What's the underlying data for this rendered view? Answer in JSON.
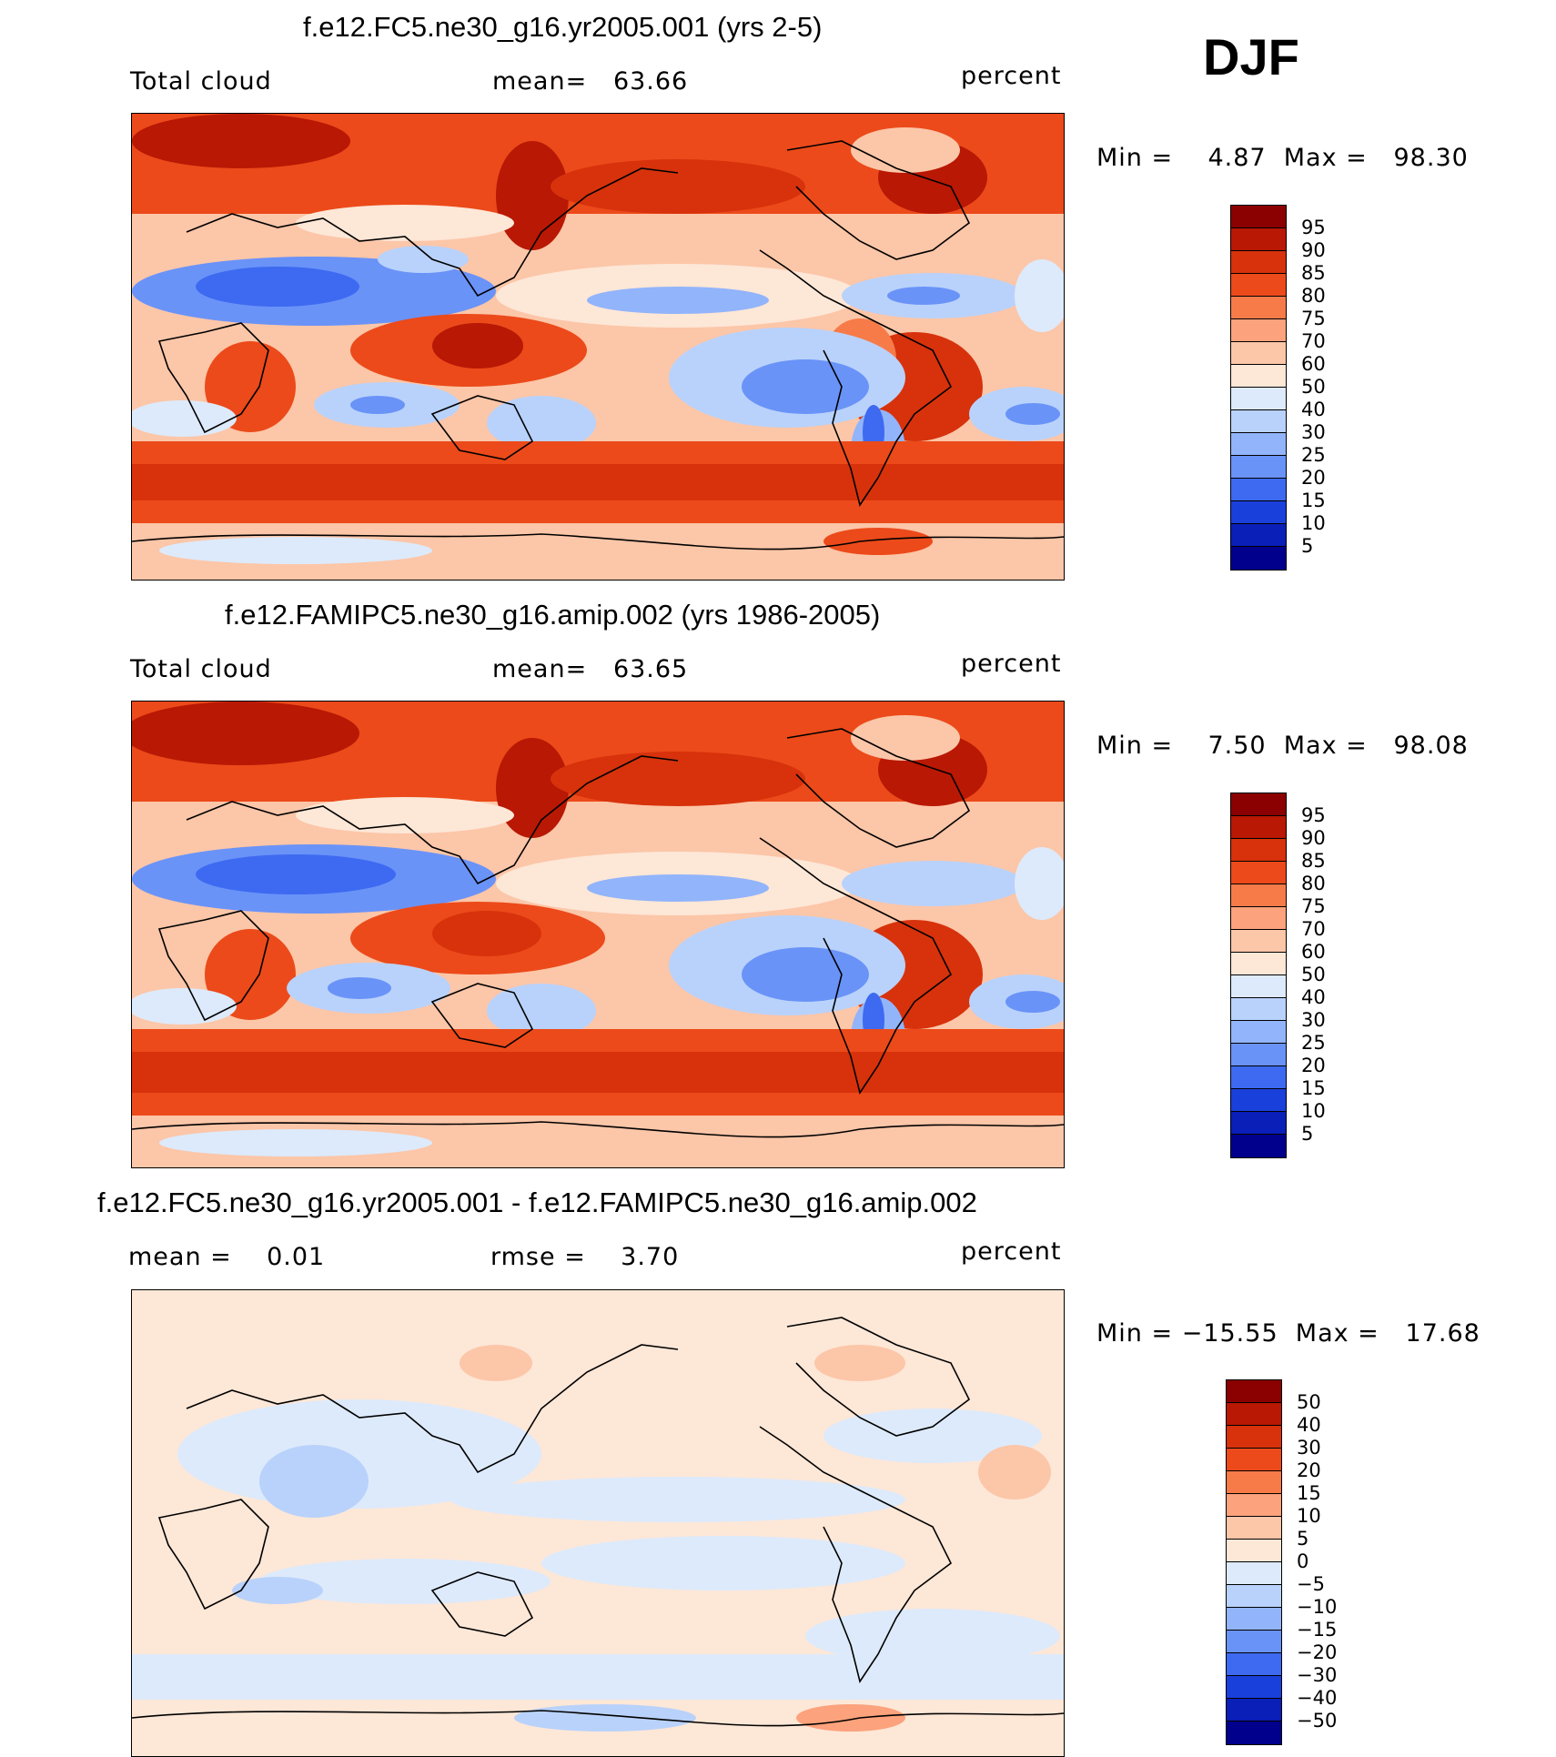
{
  "season": "DJF",
  "panels": [
    {
      "title": "f.e12.FC5.ne30_g16.yr2005.001 (yrs 2-5)",
      "left_label": "Total cloud",
      "center_label": "mean=   63.66",
      "units": "percent",
      "minmax": "Min =    4.87  Max =   98.30",
      "legend": [
        "95",
        "90",
        "85",
        "80",
        "75",
        "70",
        "60",
        "50",
        "40",
        "30",
        "25",
        "20",
        "15",
        "10",
        "5"
      ]
    },
    {
      "title": "f.e12.FAMIPC5.ne30_g16.amip.002 (yrs 1986-2005)",
      "left_label": "Total cloud",
      "center_label": "mean=   63.65",
      "units": "percent",
      "minmax": "Min =    7.50  Max =   98.08",
      "legend": [
        "95",
        "90",
        "85",
        "80",
        "75",
        "70",
        "60",
        "50",
        "40",
        "30",
        "25",
        "20",
        "15",
        "10",
        "5"
      ]
    },
    {
      "title": "f.e12.FC5.ne30_g16.yr2005.001 - f.e12.FAMIPC5.ne30_g16.amip.002",
      "left_label": "mean =    0.01",
      "center_label": "rmse =    3.70",
      "units": "percent",
      "minmax": "Min = −15.55  Max =   17.68",
      "legend": [
        "50",
        "40",
        "30",
        "20",
        "15",
        "10",
        "5",
        "0",
        "−5",
        "−10",
        "−15",
        "−20",
        "−30",
        "−40",
        "−50"
      ]
    }
  ],
  "colors": {
    "abs_scale": [
      "#8b0000",
      "#b81804",
      "#d7320c",
      "#ec4a1a",
      "#f77b49",
      "#fca27c",
      "#fcc6a8",
      "#fde7d7",
      "#ddeafb",
      "#b9d2fb",
      "#92b4fb",
      "#6a93f8",
      "#3d6af0",
      "#1a40dc",
      "#0a1eb8",
      "#00008c"
    ],
    "diff_scale": [
      "#8b0000",
      "#b81804",
      "#d7320c",
      "#ec4a1a",
      "#f77b49",
      "#fca27c",
      "#fcc6a8",
      "#fde7d7",
      "#ddeafb",
      "#b9d2fb",
      "#92b4fb",
      "#6a93f8",
      "#3d6af0",
      "#1a40dc",
      "#0a1eb8",
      "#00008c"
    ]
  }
}
